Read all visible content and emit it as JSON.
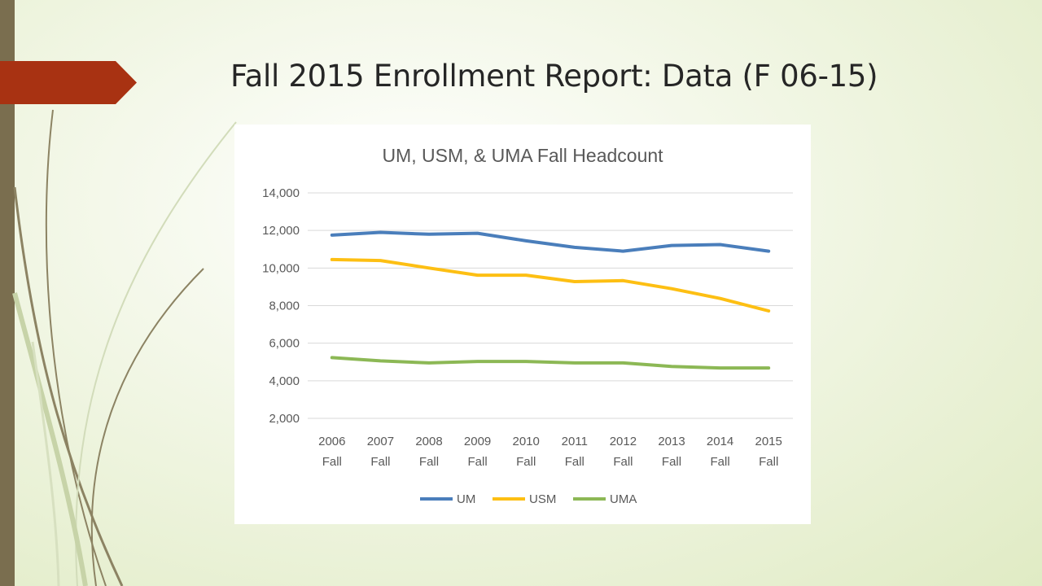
{
  "slide": {
    "title": "Fall 2015 Enrollment Report: Data (F 06-15)"
  },
  "theme": {
    "accent_arrow": "#a83212",
    "left_bar": "#7a6e4f"
  },
  "chart_data": {
    "type": "line",
    "title": "UM, USM, & UMA Fall Headcount",
    "xlabel": "",
    "ylabel": "",
    "categories": [
      [
        "2006",
        "Fall"
      ],
      [
        "2007",
        "Fall"
      ],
      [
        "2008",
        "Fall"
      ],
      [
        "2009",
        "Fall"
      ],
      [
        "2010",
        "Fall"
      ],
      [
        "2011",
        "Fall"
      ],
      [
        "2012",
        "Fall"
      ],
      [
        "2013",
        "Fall"
      ],
      [
        "2014",
        "Fall"
      ],
      [
        "2015",
        "Fall"
      ]
    ],
    "ylim": [
      2000,
      14000
    ],
    "yticks": [
      2000,
      4000,
      6000,
      8000,
      10000,
      12000,
      14000
    ],
    "ytick_labels": [
      "2,000",
      "4,000",
      "6,000",
      "8,000",
      "10,000",
      "12,000",
      "14,000"
    ],
    "grid": true,
    "legend_position": "bottom",
    "series": [
      {
        "name": "UM",
        "color": "#4a7ebb",
        "values": [
          11750,
          11900,
          11800,
          11850,
          11450,
          11100,
          10900,
          11200,
          11250,
          10900
        ]
      },
      {
        "name": "USM",
        "color": "#fdbf13",
        "values": [
          10450,
          10400,
          10000,
          9620,
          9620,
          9280,
          9330,
          8900,
          8380,
          7720
        ]
      },
      {
        "name": "UMA",
        "color": "#8cb855",
        "values": [
          5230,
          5060,
          4950,
          5030,
          5030,
          4950,
          4950,
          4760,
          4680,
          4680
        ]
      }
    ]
  }
}
